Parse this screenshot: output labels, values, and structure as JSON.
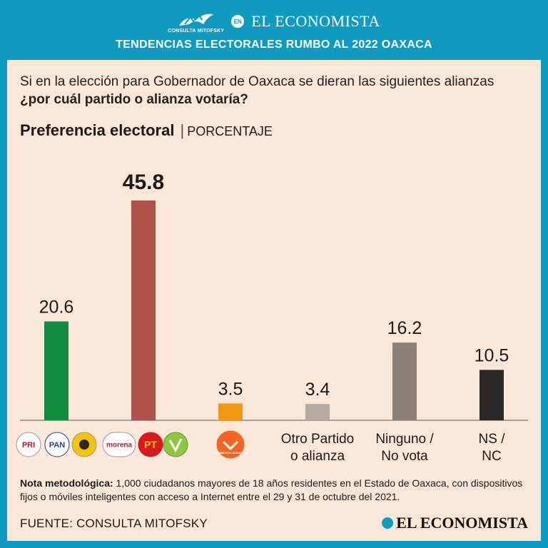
{
  "header": {
    "mitofsky_logo_text": "CONSULTA MITOFSKY",
    "badge": "EN",
    "brand": "EL ECONOMISTA",
    "title": "TENDENCIAS ELECTORALES RUMBO AL 2022 OAXACA"
  },
  "question": {
    "text": "Si en la elección para Gobernador de Oaxaca se dieran las siguientes alianzas ",
    "bold": "¿por cuál partido o alianza votaría?"
  },
  "chart_title": {
    "main": "Preferencia electoral",
    "separator": "|",
    "unit": "PORCENTAJE"
  },
  "chart_data": {
    "type": "bar",
    "title": "Preferencia electoral",
    "ylabel": "PORCENTAJE",
    "ylim": [
      0,
      50
    ],
    "categories": [
      "PRI-PAN-PRD",
      "Morena-PT-PVEM",
      "Movimiento Ciudadano",
      "Otro Partido o alianza",
      "Ninguno / No vota",
      "NS / NC"
    ],
    "values": [
      20.6,
      45.8,
      3.5,
      3.4,
      16.2,
      10.5
    ],
    "value_labels": [
      "20.6",
      "45.8",
      "3.5",
      "3.4",
      "16.2",
      "10.5"
    ],
    "colors": [
      "#138a3e",
      "#b0504a",
      "#f29614",
      "#b5a9a0",
      "#8d8079",
      "#2b2826"
    ],
    "text_labels": [
      null,
      null,
      null,
      [
        "Otro Partido",
        "o alianza"
      ],
      [
        "Ninguno /",
        "No vota"
      ],
      [
        "NS /",
        "NC"
      ]
    ],
    "logo_text": {
      "pri": "PRI",
      "pan": "PAN",
      "morena": "morena",
      "pt": "PT",
      "mc": "MOVIMIENTO CIUDADANO"
    }
  },
  "note": {
    "label": "Nota metodológica:",
    "text": " 1,000 ciudadanos mayores de 18 años residentes en el Estado de Oaxaca, con dispositivos fijos o móviles inteligentes con acceso a Internet entre el 29 y 31 de octubre del 2021."
  },
  "footer": {
    "source": "FUENTE: CONSULTA MITOFSKY",
    "brand": "EL ECONOMISTA"
  }
}
